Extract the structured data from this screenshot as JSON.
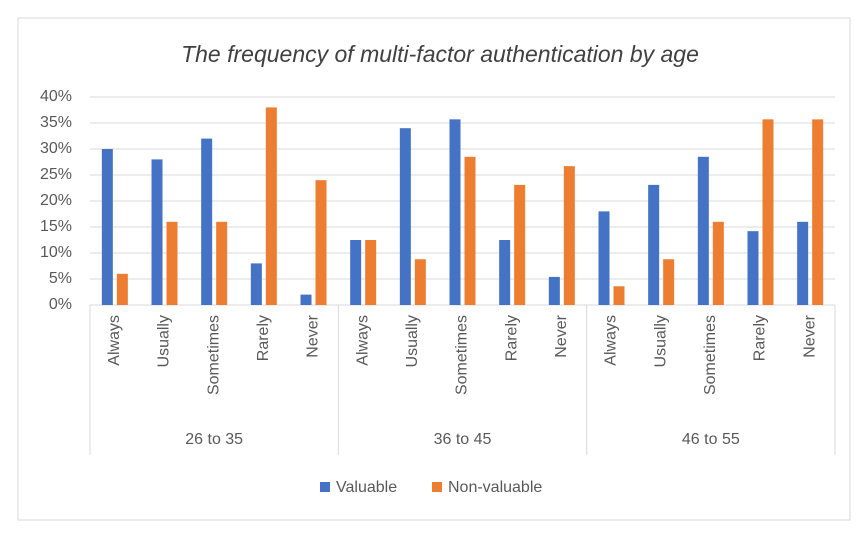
{
  "chart_data": {
    "type": "bar",
    "title": "The frequency of multi-factor authentication by age",
    "categories": [
      "Always",
      "Usually",
      "Sometimes",
      "Rarely",
      "Never",
      "Always",
      "Usually",
      "Sometimes",
      "Rarely",
      "Never",
      "Always",
      "Usually",
      "Sometimes",
      "Rarely",
      "Never"
    ],
    "category_groups": [
      "26 to 35",
      "36 to 45",
      "46 to 55"
    ],
    "series": [
      {
        "name": "Valuable",
        "color": "#4472c4",
        "values": [
          30,
          28,
          32,
          8,
          2,
          12.5,
          34,
          35.7,
          12.5,
          5.4,
          18,
          23.1,
          28.5,
          14.2,
          16
        ]
      },
      {
        "name": "Non-valuable",
        "color": "#ed7d31",
        "values": [
          6,
          16,
          16,
          38,
          24,
          12.5,
          8.8,
          28.5,
          23.1,
          26.7,
          3.6,
          8.8,
          16,
          35.7,
          35.7
        ]
      }
    ],
    "ylim": [
      0,
      40
    ],
    "yticks": [
      {
        "value": 0,
        "label": "0%"
      },
      {
        "value": 5,
        "label": "5%"
      },
      {
        "value": 10,
        "label": "10%"
      },
      {
        "value": 15,
        "label": "15%"
      },
      {
        "value": 20,
        "label": "20%"
      },
      {
        "value": 25,
        "label": "25%"
      },
      {
        "value": 30,
        "label": "30%"
      },
      {
        "value": 35,
        "label": "35%"
      },
      {
        "value": 40,
        "label": "40%"
      }
    ],
    "grid": true,
    "legend": "bottom"
  }
}
